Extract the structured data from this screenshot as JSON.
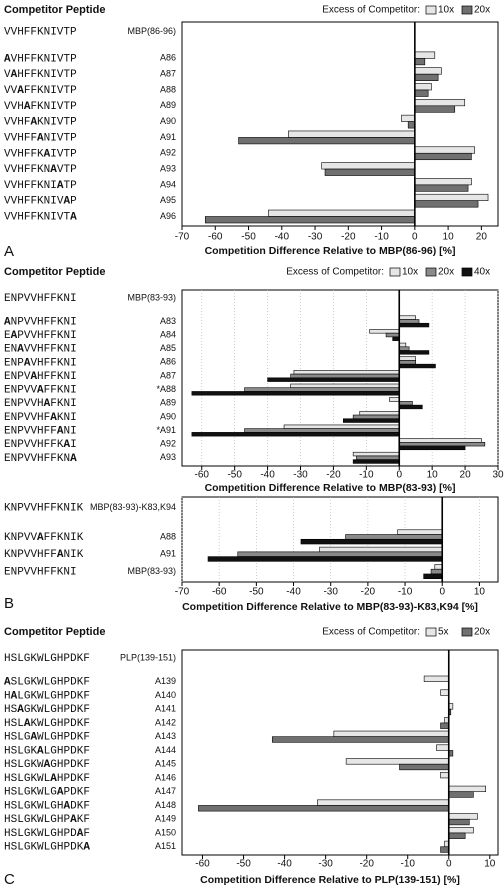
{
  "chart_data": [
    {
      "type": "hbar",
      "panel": "A",
      "header": "Competitor Peptide",
      "legend_title": "Excess of Competitor:",
      "xlabel": "Competition Difference Relative to MBP(86-96) [%]",
      "peptides": [
        "VVHFFKNIVTP",
        "AVHFFKNIVTP",
        "VAHFFKNIVTP",
        "VVAFFKNIVTP",
        "VVHAFKNIVTP",
        "VVHFAKNIVTP",
        "VVHFFANIVTP",
        "VVHFFKAIVTP",
        "VVHFFKNAVTP",
        "VVHFFKNIATP",
        "VVHFFKNIVAP",
        "VVHFFKNIVTA"
      ],
      "categories": [
        "MBP(86-96)",
        "A86",
        "A87",
        "A88",
        "A89",
        "A90",
        "A91",
        "A92",
        "A93",
        "A94",
        "A95",
        "A96"
      ],
      "series": [
        {
          "name": "10x",
          "color": "#e6e6e6",
          "values": [
            null,
            6,
            8,
            5,
            15,
            -4,
            -38,
            18,
            -28,
            17,
            22,
            -44
          ]
        },
        {
          "name": "20x",
          "color": "#707070",
          "values": [
            null,
            3,
            7,
            4,
            12,
            -2,
            -53,
            17,
            -27,
            16,
            19,
            -63
          ]
        }
      ],
      "xlim": [
        -70,
        25
      ],
      "xticks": [
        -70,
        -60,
        -50,
        -40,
        -30,
        -20,
        -10,
        0,
        10,
        20
      ],
      "grid": false
    },
    {
      "type": "hbar",
      "header": "Competitor Peptide",
      "legend_title": "Excess of Competitor:",
      "xlabel": "Competition Difference Relative to MBP(83-93) [%]",
      "peptides": [
        "ENPVVHFFKNI",
        "ANPVVHFFKNI",
        "EAPVVHFFKNI",
        "ENAVVHFFKNI",
        "ENPAVHFFKNI",
        "ENPVAHFFKNI",
        "ENPVVAFFKNI",
        "ENPVVHAFKNI",
        "ENPVVHFAKNI",
        "ENPVVHFFANI",
        "ENPVVHFFKAI",
        "ENPVVHFFKNA"
      ],
      "categories": [
        "MBP(83-93)",
        "A83",
        "A84",
        "A85",
        "A86",
        "A87",
        "*A88",
        "A89",
        "A90",
        "*A91",
        "A92",
        "A93"
      ],
      "series": [
        {
          "name": "10x",
          "color": "#e6e6e6",
          "values": [
            null,
            5,
            -9,
            2,
            5,
            -32,
            -33,
            -3,
            -12,
            -35,
            25,
            -14
          ]
        },
        {
          "name": "20x",
          "color": "#8a8a8a",
          "values": [
            null,
            6,
            -4,
            3,
            5,
            -33,
            -47,
            4,
            -14,
            -47,
            26,
            -13
          ]
        },
        {
          "name": "40x",
          "color": "#111111",
          "values": [
            null,
            9,
            -2,
            9,
            11,
            -40,
            -63,
            7,
            -17,
            -63,
            20,
            -14
          ]
        }
      ],
      "xlim": [
        -66,
        30
      ],
      "xticks": [
        -60,
        -50,
        -40,
        -30,
        -20,
        -10,
        0,
        10,
        20,
        30
      ],
      "grid": true
    },
    {
      "type": "hbar",
      "panel": "B",
      "xlabel": "Competition Difference Relative to MBP(83-93)-K83,K94 [%]",
      "peptides": [
        "KNPVVHFFKNIK",
        "KNPVVAFFKNIK",
        "KNPVVHFFANIK",
        "ENPVVHFFKNI"
      ],
      "categories": [
        "MBP(83-93)-K83,K94",
        "A88",
        "A91",
        "MBP(83-93)"
      ],
      "series": [
        {
          "name": "10x",
          "color": "#e6e6e6",
          "values": [
            null,
            -12,
            -33,
            -2
          ]
        },
        {
          "name": "20x",
          "color": "#8a8a8a",
          "values": [
            null,
            -26,
            -55,
            -3
          ]
        },
        {
          "name": "40x",
          "color": "#111111",
          "values": [
            null,
            -38,
            -63,
            -5
          ]
        }
      ],
      "xlim": [
        -70,
        15
      ],
      "xticks": [
        -70,
        -60,
        -50,
        -40,
        -30,
        -20,
        -10,
        0,
        10
      ],
      "grid": true
    },
    {
      "type": "hbar",
      "panel": "C",
      "header": "Competitor Peptide",
      "legend_title": "Excess of Competitor:",
      "xlabel": "Competition Difference Relative to PLP(139-151) [%]",
      "peptides": [
        "HSLGKWLGHPDKF",
        "ASLGKWLGHPDKF",
        "HALGKWLGHPDKF",
        "HSAGKWLGHPDKF",
        "HSLAKWLGHPDKF",
        "HSLGAWLGHPDKF",
        "HSLGKALGHPDKF",
        "HSLGKWAGHPDKF",
        "HSLGKWLAHPDKF",
        "HSLGKWLGAPDKF",
        "HSLGKWLGHADKF",
        "HSLGKWLGHPAKF",
        "HSLGKWLGHPDAF",
        "HSLGKWLGHPDKA"
      ],
      "categories": [
        "PLP(139-151)",
        "A139",
        "A140",
        "A141",
        "A142",
        "A143",
        "A144",
        "A145",
        "A146",
        "A147",
        "A148",
        "A149",
        "A150",
        "A151"
      ],
      "series": [
        {
          "name": "5x",
          "color": "#e6e6e6",
          "values": [
            null,
            -6,
            -2,
            1,
            -1,
            -28,
            -3,
            -25,
            -2,
            9,
            -32,
            7,
            6,
            -1
          ]
        },
        {
          "name": "20x",
          "color": "#707070",
          "values": [
            null,
            0,
            0,
            0.5,
            -2,
            -43,
            1,
            -12,
            0,
            6,
            -61,
            5,
            4,
            -2
          ]
        }
      ],
      "xlim": [
        -65,
        12
      ],
      "xticks": [
        -60,
        -50,
        -40,
        -30,
        -20,
        -10,
        0,
        10
      ],
      "grid": false
    }
  ]
}
